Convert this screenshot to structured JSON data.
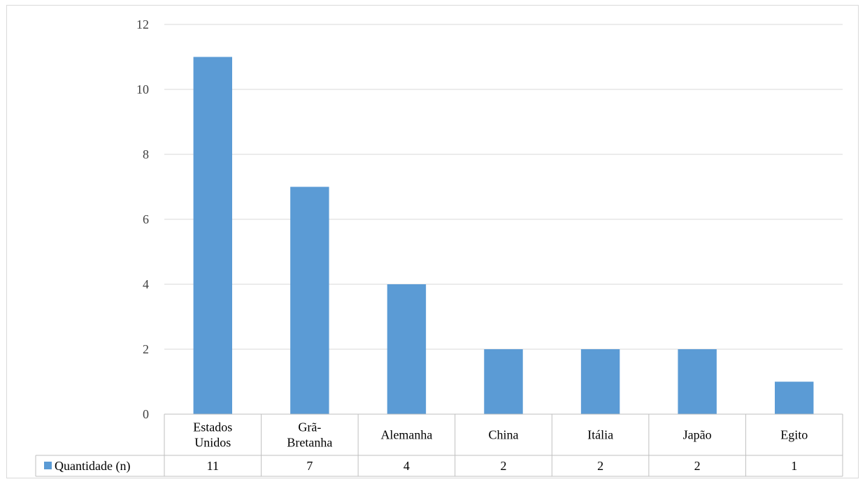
{
  "chart_data": {
    "type": "bar",
    "categories": [
      [
        "Estados",
        "Unidos"
      ],
      [
        "Grã-",
        "Bretanha"
      ],
      [
        "Alemanha"
      ],
      [
        "China"
      ],
      [
        "Itália"
      ],
      [
        "Japão"
      ],
      [
        "Egito"
      ]
    ],
    "series": [
      {
        "name": "Quantidade (n)",
        "values": [
          11,
          7,
          4,
          2,
          2,
          2,
          1
        ],
        "color": "#5b9bd5"
      }
    ],
    "ylim": [
      0,
      12
    ],
    "yticks": [
      0,
      2,
      4,
      6,
      8,
      10,
      12
    ],
    "grid": true,
    "data_table": true,
    "title": "",
    "xlabel": "",
    "ylabel": ""
  }
}
